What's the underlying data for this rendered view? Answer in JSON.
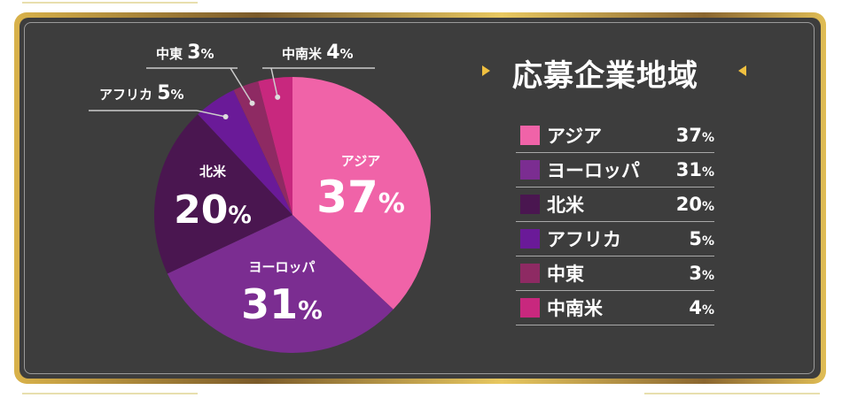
{
  "title": "応募企業地域",
  "colors": {
    "background": "#3d3d3d",
    "accent": "#f0c040"
  },
  "chart_data": {
    "type": "pie",
    "title": "応募企業地域",
    "start": "top",
    "direction": "clockwise",
    "slices": [
      {
        "label": "アジア",
        "value": 37,
        "display": "37",
        "color": "#f063a8"
      },
      {
        "label": "ヨーロッパ",
        "value": 31,
        "display": "31",
        "color": "#7b2d91"
      },
      {
        "label": "北米",
        "value": 20,
        "display": "20",
        "color": "#4a1650"
      },
      {
        "label": "アフリカ",
        "value": 5,
        "display": "5",
        "color": "#6a1a98"
      },
      {
        "label": "中東",
        "value": 3,
        "display": "3",
        "color": "#8e2a63"
      },
      {
        "label": "中南米",
        "value": 4,
        "display": "4",
        "color": "#c8287e"
      }
    ],
    "unit": "%"
  }
}
